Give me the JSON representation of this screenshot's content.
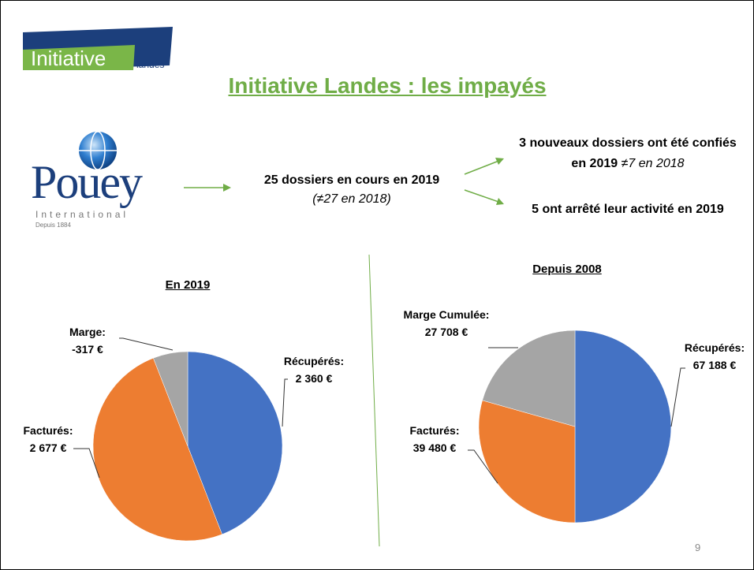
{
  "header": {
    "logo_main": "Initiative",
    "logo_sub": "landes",
    "title": "Initiative Landes :  les impayés"
  },
  "pouey": {
    "name": "Pouey",
    "sub": "International",
    "since": "Depuis 1884"
  },
  "flow": {
    "center": "25 dossiers en cours en 2019",
    "center_note": "(≠27 en 2018)",
    "top": "3 nouveaux dossiers ont été confiés en 2019",
    "top_note": "≠7 en 2018",
    "bottom": "5 ont arrêté leur activité en 2019"
  },
  "page_number": "9",
  "chart_data": [
    {
      "type": "pie",
      "title": "En 2019",
      "categories": [
        "Récupérés:",
        "Facturés:",
        "Marge:"
      ],
      "values": [
        2360,
        2677,
        -317
      ],
      "value_labels": [
        "2 360 €",
        "2 677 €",
        "-317 €"
      ],
      "colors": [
        "#4472c4",
        "#ed7d31",
        "#a5a5a5"
      ]
    },
    {
      "type": "pie",
      "title": "Depuis 2008",
      "categories": [
        "Récupérés:",
        "Facturés:",
        "Marge Cumulée:"
      ],
      "values": [
        67188,
        39480,
        27708
      ],
      "value_labels": [
        "67 188 €",
        "39 480 €",
        "27 708 €"
      ],
      "colors": [
        "#4472c4",
        "#ed7d31",
        "#a5a5a5"
      ]
    }
  ]
}
